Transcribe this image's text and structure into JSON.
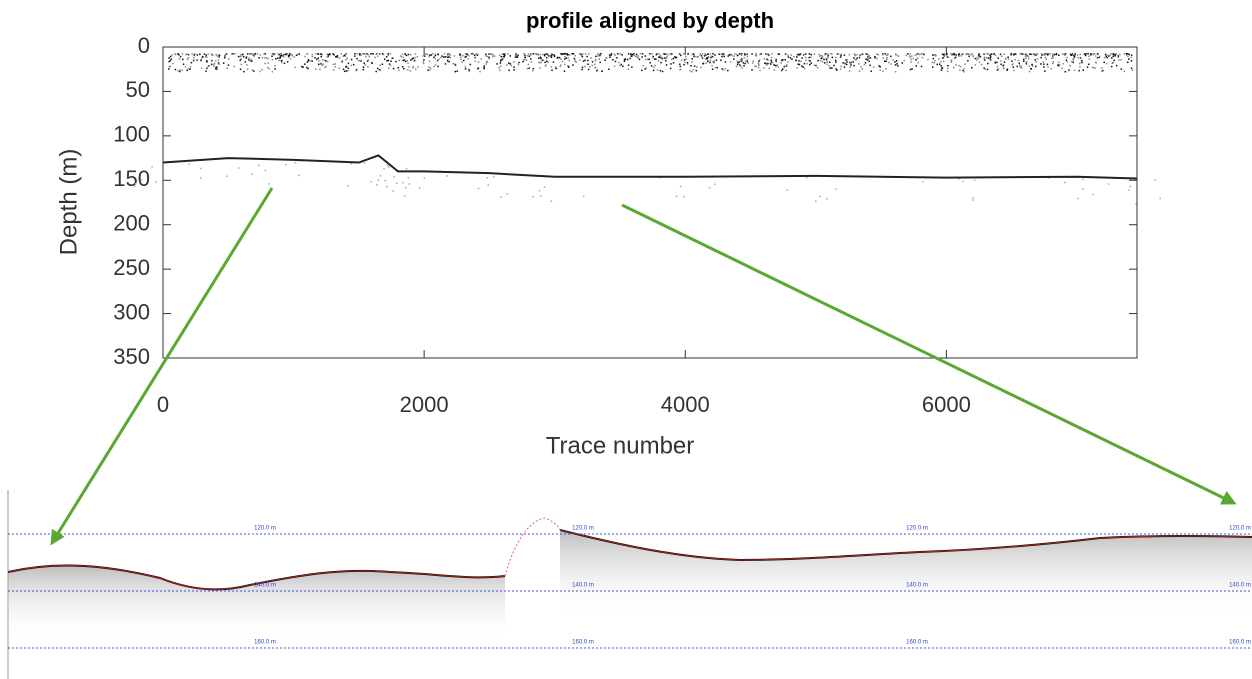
{
  "chart_data": {
    "type": "radargram",
    "title": "profile aligned by depth",
    "xlabel": "Trace number",
    "ylabel": "Depth (m)",
    "xlim": [
      0,
      7460
    ],
    "ylim": [
      0,
      350
    ],
    "y_reversed": true,
    "xticks": [
      0,
      2000,
      4000,
      6000
    ],
    "yticks": [
      0,
      50,
      100,
      150,
      200,
      250,
      300,
      350
    ],
    "series": [
      {
        "color": "#222222",
        "x": [
          0,
          500,
          1000,
          1500,
          1650,
          1800,
          2000,
          2500,
          3000,
          4000,
          5000,
          6000,
          7000,
          7460
        ],
        "values": [
          130,
          125,
          127,
          130,
          122,
          140,
          140,
          142,
          146,
          146,
          145,
          147,
          146,
          148
        ]
      }
    ]
  },
  "zoom_panel": {
    "labels": [
      "120.0 m",
      "140.0 m",
      "160.0 m"
    ]
  }
}
